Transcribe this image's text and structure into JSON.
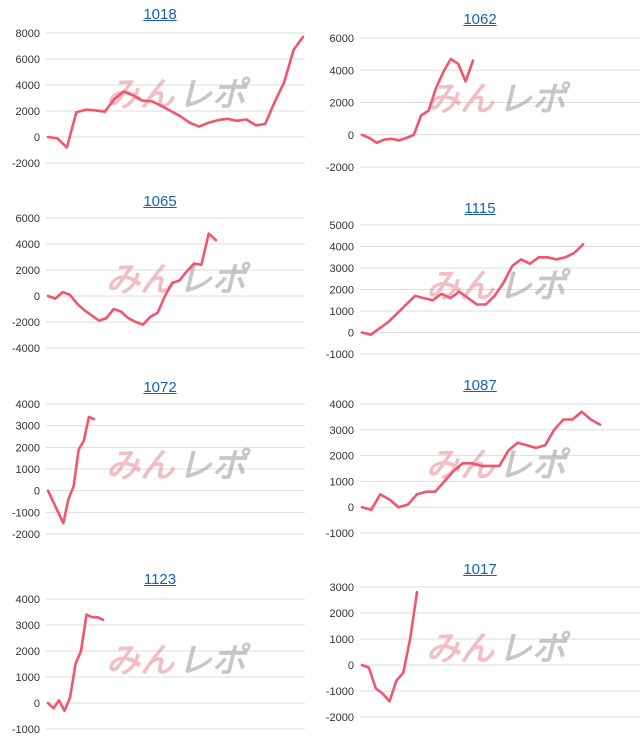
{
  "colors": {
    "line": "#f0566e",
    "grid": "#dddddd",
    "title": "#1a5fb4",
    "watermark_red": "#e88a96",
    "watermark_gray": "#9a9a9a"
  },
  "watermark": {
    "text": "みんレポ"
  },
  "chart_data": [
    {
      "type": "line",
      "title": "1018",
      "yticks": [
        -2000,
        0,
        2000,
        4000,
        6000,
        8000
      ],
      "ylim": [
        -2000,
        8000
      ],
      "values": [
        0,
        -100,
        -800,
        1900,
        2100,
        2050,
        1950,
        2900,
        3500,
        3200,
        2800,
        2750,
        2400,
        2000,
        1600,
        1100,
        800,
        1100,
        1300,
        1400,
        1250,
        1350,
        900,
        1000,
        2700,
        4200,
        6700,
        7700
      ]
    },
    {
      "type": "line",
      "title": "1062",
      "yticks": [
        -2000,
        0,
        2000,
        4000,
        6000
      ],
      "ylim": [
        -2000,
        6000
      ],
      "values": [
        0,
        -200,
        -500,
        -300,
        -250,
        -350,
        -200,
        0,
        1200,
        1500,
        2900,
        3900,
        4700,
        4400,
        3300,
        4600
      ]
    },
    {
      "type": "line",
      "title": "1065",
      "yticks": [
        -4000,
        -2000,
        0,
        2000,
        4000,
        6000
      ],
      "ylim": [
        -4000,
        6000
      ],
      "values": [
        0,
        -200,
        300,
        100,
        -600,
        -1100,
        -1500,
        -1900,
        -1700,
        -1000,
        -1200,
        -1700,
        -2000,
        -2200,
        -1600,
        -1300,
        0,
        1000,
        1200,
        1900,
        2500,
        2400,
        4800,
        4300
      ]
    },
    {
      "type": "line",
      "title": "1115",
      "yticks": [
        -1000,
        0,
        1000,
        2000,
        3000,
        4000,
        5000
      ],
      "ylim": [
        -1000,
        5000
      ],
      "values": [
        0,
        -100,
        200,
        500,
        900,
        1300,
        1700,
        1600,
        1500,
        1800,
        1600,
        1900,
        1600,
        1300,
        1300,
        1700,
        2300,
        3100,
        3400,
        3200,
        3500,
        3500,
        3400,
        3500,
        3700,
        4100
      ]
    },
    {
      "type": "line",
      "title": "1072",
      "yticks": [
        -2000,
        -1000,
        0,
        1000,
        2000,
        3000,
        4000
      ],
      "ylim": [
        -2000,
        4000
      ],
      "values": [
        0,
        -500,
        -1000,
        -1500,
        -400,
        200,
        1900,
        2300,
        3400,
        3300
      ]
    },
    {
      "type": "line",
      "title": "1087",
      "yticks": [
        -1000,
        0,
        1000,
        2000,
        3000,
        4000
      ],
      "ylim": [
        -1000,
        4000
      ],
      "values": [
        0,
        -100,
        500,
        300,
        0,
        100,
        500,
        600,
        600,
        1000,
        1400,
        1700,
        1700,
        1600,
        1600,
        1600,
        2200,
        2500,
        2400,
        2300,
        2400,
        3000,
        3400,
        3400,
        3700,
        3400,
        3200
      ]
    },
    {
      "type": "line",
      "title": "1123",
      "yticks": [
        -1000,
        0,
        1000,
        2000,
        3000,
        4000
      ],
      "ylim": [
        -1000,
        4000
      ],
      "values": [
        0,
        -200,
        100,
        -300,
        200,
        1500,
        2000,
        3400,
        3300,
        3300,
        3200
      ]
    },
    {
      "type": "line",
      "title": "1017",
      "yticks": [
        -2000,
        -1000,
        0,
        1000,
        2000,
        3000
      ],
      "ylim": [
        -2000,
        3000
      ],
      "values": [
        0,
        -100,
        -900,
        -1100,
        -1400,
        -600,
        -300,
        1000,
        2800
      ]
    }
  ]
}
